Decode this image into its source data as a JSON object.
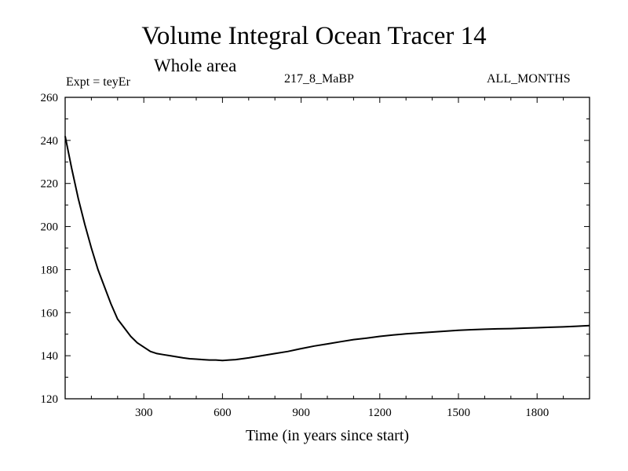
{
  "chart_data": {
    "type": "line",
    "title": "Volume Integral Ocean Tracer 14",
    "subtitle": "Whole area",
    "annotations": {
      "expt": "Expt = teyEr",
      "run": "217_8_MaBP",
      "months": "ALL_MONTHS"
    },
    "xlabel": "Time (in years since start)",
    "ylabel": "",
    "xlim": [
      0,
      2000
    ],
    "ylim": [
      120,
      260
    ],
    "xticks": [
      300,
      600,
      900,
      1200,
      1500,
      1800
    ],
    "yticks": [
      120,
      140,
      160,
      180,
      200,
      220,
      240,
      260
    ],
    "grid": false,
    "series": [
      {
        "name": "Volume Integral Ocean Tracer 14",
        "color": "#000000",
        "x": [
          0,
          25,
          50,
          75,
          100,
          125,
          150,
          175,
          200,
          225,
          250,
          275,
          300,
          325,
          350,
          375,
          400,
          425,
          450,
          475,
          500,
          525,
          550,
          575,
          600,
          625,
          650,
          675,
          700,
          750,
          800,
          850,
          900,
          950,
          1000,
          1050,
          1100,
          1150,
          1200,
          1250,
          1300,
          1350,
          1400,
          1450,
          1500,
          1550,
          1600,
          1650,
          1700,
          1750,
          1800,
          1850,
          1900,
          1950,
          2000
        ],
        "y": [
          242,
          227,
          213,
          201,
          190,
          180,
          172,
          164,
          157,
          153,
          149,
          146,
          144,
          142,
          141,
          140.5,
          140,
          139.5,
          139,
          138.6,
          138.4,
          138.2,
          138,
          138,
          137.8,
          138,
          138.2,
          138.6,
          139,
          140,
          141,
          142,
          143.3,
          144.5,
          145.5,
          146.5,
          147.5,
          148.2,
          149,
          149.6,
          150.2,
          150.6,
          151,
          151.4,
          151.8,
          152.1,
          152.3,
          152.5,
          152.6,
          152.8,
          153,
          153.2,
          153.4,
          153.7,
          154
        ]
      }
    ]
  }
}
